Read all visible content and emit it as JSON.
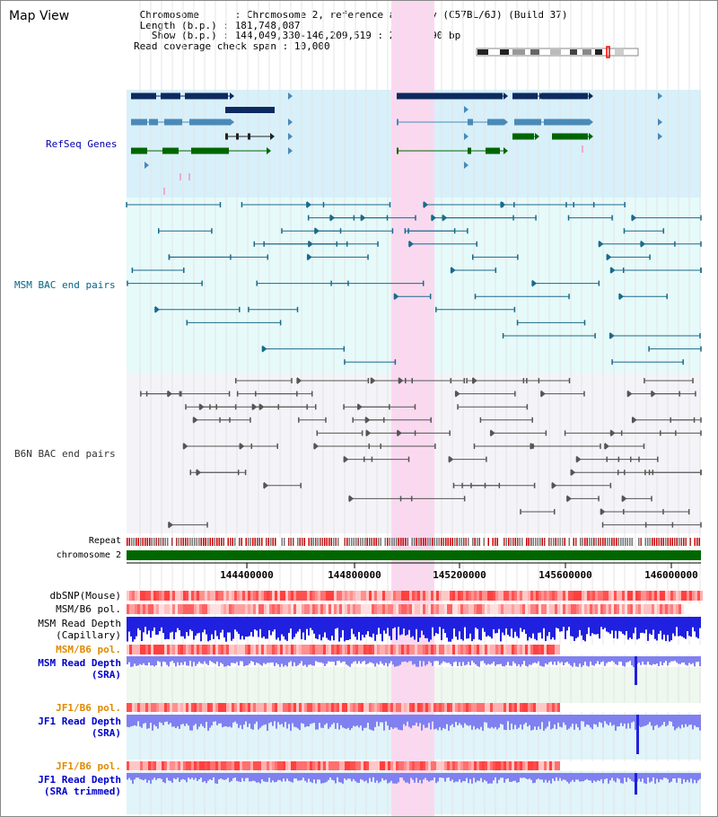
{
  "title": "Map View",
  "info": {
    "chromosome_label": "Chromosome",
    "chromosome_value": "Chromosome 2, reference assembly (C57BL/6J) (Build 37)",
    "length_label": "Length (b.p.)",
    "length_value": "181,748,087",
    "show_label": "Show (b.p.)",
    "show_value": "144,049,330-146,209,519 : 2,160,190 bp",
    "coverage_label": "Read coverage check span",
    "coverage_value": "10,000"
  },
  "tracks": {
    "refseq": "RefSeq Genes",
    "msm_bac": "MSM BAC end pairs",
    "b6n_bac": "B6N BAC end pairs",
    "repeat": "Repeat",
    "chromosome": "chromosome 2",
    "dbsnp": "dbSNP(Mouse)",
    "msm_b6_pol_1": "MSM/B6 pol.",
    "msm_depth_cap_1": "MSM Read Depth",
    "msm_depth_cap_2": "(Capillary)",
    "msm_b6_pol_2": "MSM/B6 pol.",
    "msm_depth_sra_1": "MSM Read Depth",
    "msm_depth_sra_2": "(SRA)",
    "jf1_b6_pol_1": "JF1/B6 pol.",
    "jf1_depth_sra_1": "JF1 Read Depth",
    "jf1_depth_sra_2": "(SRA)",
    "jf1_b6_pol_2": "JF1/B6 pol.",
    "jf1_depth_trim_1": "JF1 Read Depth",
    "jf1_depth_trim_2": "(SRA trimmed)"
  },
  "axis": {
    "ticks": [
      "144400000",
      "144800000",
      "145200000",
      "145600000",
      "146000000"
    ]
  },
  "colors": {
    "refseq_bg": "#d8f0fa",
    "msm_bg": "#e6fafa",
    "b6n_bg": "#f4f4f8",
    "highlight": "#fcd8f0",
    "refseq_dark": "#0d2a60",
    "refseq_mid": "#4a8ab8",
    "refseq_green": "#006600",
    "msm_line": "#1a6a8a",
    "b6n_line": "#555555",
    "chromosome": "#006600",
    "snp_red": "#ff4040",
    "depth_blue": "#2020e0",
    "depth_light": "#8080f0"
  }
}
